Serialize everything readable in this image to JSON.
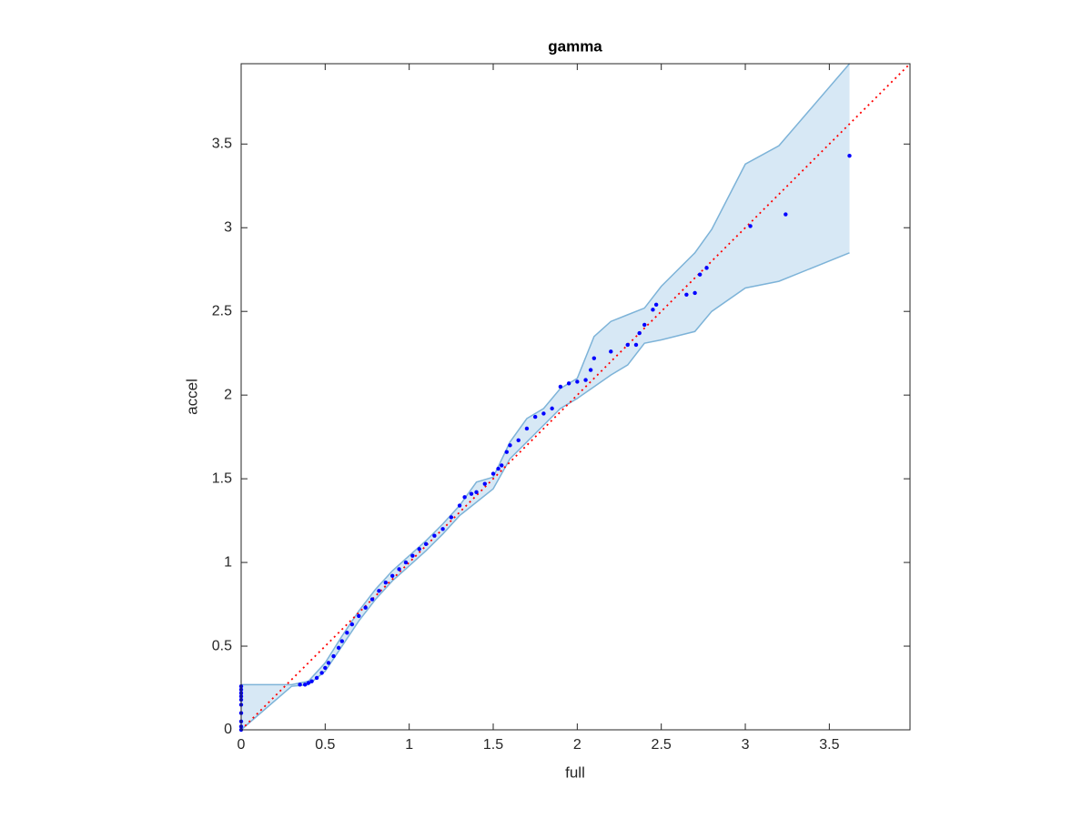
{
  "chart_data": {
    "type": "scatter",
    "title": "gamma",
    "xlabel": "full",
    "ylabel": "accel",
    "xlim": [
      0,
      3.98
    ],
    "ylim": [
      0,
      3.98
    ],
    "xticks": [
      0,
      0.5,
      1,
      1.5,
      2,
      2.5,
      3,
      3.5
    ],
    "yticks": [
      0,
      0.5,
      1,
      1.5,
      2,
      2.5,
      3,
      3.5
    ],
    "points": {
      "color": "#0000ff",
      "x": [
        0,
        0,
        0,
        0,
        0,
        0,
        0,
        0,
        0,
        0,
        0.35,
        0.38,
        0.4,
        0.42,
        0.45,
        0.48,
        0.5,
        0.52,
        0.55,
        0.58,
        0.6,
        0.63,
        0.66,
        0.7,
        0.74,
        0.78,
        0.82,
        0.86,
        0.9,
        0.94,
        0.98,
        1.02,
        1.06,
        1.1,
        1.15,
        1.2,
        1.25,
        1.3,
        1.33,
        1.37,
        1.4,
        1.45,
        1.5,
        1.53,
        1.55,
        1.58,
        1.6,
        1.65,
        1.7,
        1.75,
        1.8,
        1.85,
        1.9,
        1.95,
        2.0,
        2.05,
        2.08,
        2.1,
        2.2,
        2.3,
        2.35,
        2.37,
        2.4,
        2.45,
        2.47,
        2.65,
        2.7,
        2.73,
        2.77,
        3.03,
        3.24,
        3.62
      ],
      "values": [
        0,
        0.02,
        0.05,
        0.1,
        0.15,
        0.18,
        0.2,
        0.22,
        0.24,
        0.26,
        0.27,
        0.27,
        0.28,
        0.29,
        0.31,
        0.34,
        0.37,
        0.4,
        0.44,
        0.49,
        0.53,
        0.58,
        0.63,
        0.68,
        0.73,
        0.78,
        0.83,
        0.88,
        0.92,
        0.96,
        1.0,
        1.04,
        1.08,
        1.11,
        1.16,
        1.2,
        1.27,
        1.34,
        1.39,
        1.41,
        1.42,
        1.47,
        1.53,
        1.56,
        1.58,
        1.66,
        1.7,
        1.73,
        1.8,
        1.87,
        1.89,
        1.92,
        2.05,
        2.07,
        2.08,
        2.09,
        2.15,
        2.22,
        2.26,
        2.3,
        2.3,
        2.37,
        2.42,
        2.51,
        2.54,
        2.6,
        2.61,
        2.72,
        2.76,
        3.01,
        3.08,
        3.43
      ]
    },
    "band": {
      "color": "#a6cde8",
      "x": [
        0,
        0.3,
        0.4,
        0.5,
        0.6,
        0.7,
        0.8,
        0.9,
        1.0,
        1.1,
        1.2,
        1.3,
        1.4,
        1.5,
        1.6,
        1.7,
        1.8,
        1.9,
        2.0,
        2.1,
        2.2,
        2.3,
        2.4,
        2.5,
        2.7,
        2.8,
        3.0,
        3.2,
        3.62
      ],
      "upper": [
        0.27,
        0.27,
        0.29,
        0.4,
        0.56,
        0.71,
        0.84,
        0.95,
        1.04,
        1.13,
        1.23,
        1.34,
        1.48,
        1.51,
        1.72,
        1.86,
        1.92,
        2.04,
        2.1,
        2.35,
        2.44,
        2.48,
        2.52,
        2.65,
        2.85,
        2.99,
        3.38,
        3.49,
        3.98
      ],
      "lower": [
        0,
        0.26,
        0.27,
        0.35,
        0.5,
        0.65,
        0.78,
        0.89,
        0.98,
        1.07,
        1.17,
        1.28,
        1.36,
        1.44,
        1.62,
        1.72,
        1.82,
        1.92,
        1.98,
        2.05,
        2.12,
        2.18,
        2.31,
        2.33,
        2.38,
        2.5,
        2.64,
        2.68,
        2.85
      ]
    },
    "reference": {
      "color": "#ff0000",
      "x": [
        0,
        3.98
      ],
      "values": [
        0,
        3.98
      ]
    }
  }
}
